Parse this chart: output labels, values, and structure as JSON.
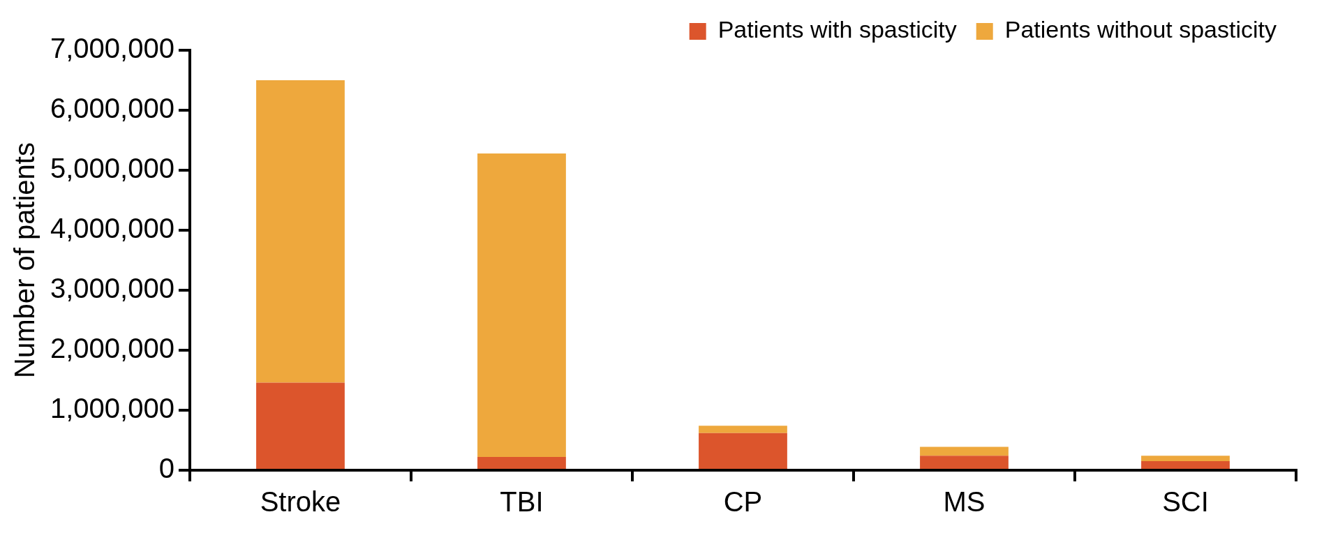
{
  "chart_data": {
    "type": "bar",
    "ylabel": "Number of patients",
    "categories": [
      "Stroke",
      "TBI",
      "CP",
      "MS",
      "SCI"
    ],
    "stacked": true,
    "series": [
      {
        "name": "Patients with spasticity",
        "color": "#dc552c",
        "values": [
          1460000,
          220000,
          620000,
          240000,
          150000
        ]
      },
      {
        "name": "Patients without spasticity",
        "color": "#eea83d",
        "values": [
          5040000,
          5060000,
          120000,
          150000,
          90000
        ]
      }
    ],
    "ylim": [
      0,
      7000000
    ],
    "yticks": [
      0,
      {
        "value": 1000000,
        "label": "1,000,000"
      },
      {
        "value": 2000000,
        "label": "2,000,000"
      },
      {
        "value": 3000000,
        "label": "3,000,000"
      },
      {
        "value": 4000000,
        "label": "4,000,000"
      },
      {
        "value": 5000000,
        "label": "5,000,000"
      },
      {
        "value": 6000000,
        "label": "6,000,000"
      },
      {
        "value": 7000000,
        "label": "7,000,000"
      }
    ],
    "grid": false,
    "legend": "top right"
  }
}
